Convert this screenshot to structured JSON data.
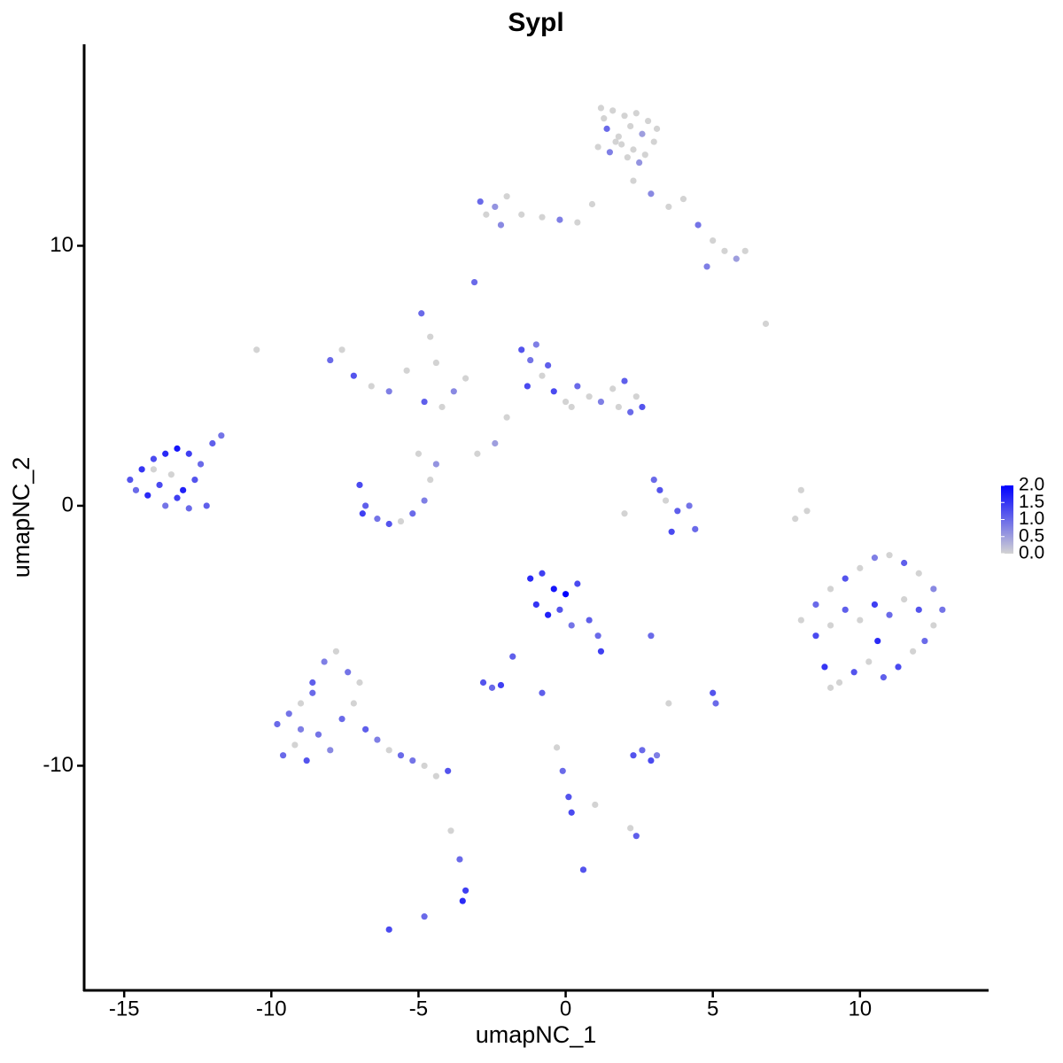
{
  "chart_data": {
    "type": "scatter",
    "title": "Sypl",
    "x_label": "umapNC_1",
    "y_label": "umapNC_2",
    "xlim": [
      -16.36,
      14.37
    ],
    "ylim": [
      -18.64,
      17.75
    ],
    "xticks": [
      -15,
      -10,
      -5,
      0,
      5,
      10
    ],
    "yticks": [
      -10,
      0,
      10
    ],
    "color_low": "#d3d3d3",
    "color_high": "#0000ff",
    "clim": [
      0,
      2
    ],
    "cticks": [
      {
        "value": 0,
        "label": "0.0"
      },
      0.5,
      {
        "value": 1,
        "label": "1.0"
      },
      1.5,
      {
        "value": 2,
        "label": "2.0"
      }
    ],
    "x": [
      1.2,
      1.6,
      2.0,
      2.4,
      2.8,
      1.4,
      1.8,
      2.2,
      2.6,
      3.0,
      1.1,
      1.5,
      1.9,
      2.3,
      2.7,
      1.3,
      1.7,
      2.1,
      2.5,
      3.1,
      2.3,
      2.9,
      3.5,
      4.0,
      4.5,
      5.0,
      5.4,
      5.8,
      6.1,
      4.8,
      -2.9,
      -2.4,
      -2.0,
      -1.5,
      -0.8,
      -0.2,
      0.4,
      -2.7,
      -2.2,
      0.9,
      -14.8,
      -14.4,
      -14.0,
      -13.6,
      -13.2,
      -12.8,
      -12.4,
      -12.0,
      -11.7,
      -14.6,
      -14.2,
      -13.8,
      -13.4,
      -13.0,
      -12.6,
      -12.2,
      -13.6,
      -13.2,
      -12.8,
      -14.0,
      -8.0,
      -7.6,
      -7.2,
      -6.6,
      -6.0,
      -5.4,
      -4.8,
      -4.2,
      -3.8,
      -3.4,
      -7.0,
      -6.8,
      -6.4,
      -6.0,
      -5.6,
      -5.2,
      -4.8,
      -4.6,
      -4.4,
      -6.9,
      -4.9,
      -4.6,
      -4.4,
      -5.0,
      -3.0,
      -1.5,
      -1.2,
      -0.8,
      -0.4,
      0.0,
      0.4,
      0.8,
      1.2,
      1.6,
      2.0,
      2.4,
      2.6,
      -1.0,
      -0.6,
      -2.0,
      -2.4,
      1.8,
      2.2,
      -1.3,
      0.2,
      3.0,
      3.2,
      3.4,
      3.8,
      4.2,
      4.4,
      2.0,
      3.6,
      8.0,
      8.2,
      7.8,
      8.0,
      8.5,
      9.0,
      9.5,
      10.0,
      10.5,
      11.0,
      11.5,
      12.0,
      12.5,
      8.5,
      9.0,
      9.5,
      10.0,
      10.5,
      11.0,
      11.5,
      12.0,
      12.5,
      12.8,
      8.8,
      9.3,
      9.8,
      10.3,
      10.8,
      11.3,
      11.8,
      12.2,
      9.0,
      10.6,
      -1.2,
      -0.8,
      -0.4,
      0.0,
      0.4,
      -1.0,
      -0.6,
      -0.2,
      0.2,
      0.8,
      1.1,
      1.2,
      -9.8,
      -9.4,
      -9.0,
      -8.6,
      -8.2,
      -7.8,
      -7.4,
      -9.6,
      -9.2,
      -8.8,
      -8.4,
      -8.0,
      -7.6,
      -7.2,
      -6.8,
      -6.4,
      -6.0,
      -5.6,
      -5.2,
      -4.8,
      -4.4,
      -4.0,
      -7.0,
      -8.6,
      -9.0,
      -2.8,
      -2.5,
      -2.2,
      -1.8,
      2.3,
      2.6,
      2.9,
      3.1,
      5.0,
      5.1,
      -0.3,
      -0.1,
      0.1,
      0.2,
      1.0,
      2.2,
      2.4,
      -3.4,
      -3.5,
      -3.6,
      -6.0,
      -4.8,
      -3.9,
      0.6,
      2.9,
      3.5,
      -0.8,
      -10.5,
      -3.1,
      6.8
    ],
    "y": [
      15.3,
      15.2,
      15.0,
      15.1,
      14.8,
      14.5,
      14.2,
      14.6,
      14.3,
      14.0,
      13.8,
      13.6,
      13.9,
      13.7,
      13.5,
      14.9,
      14.0,
      13.4,
      13.2,
      14.5,
      12.5,
      12.0,
      11.5,
      11.8,
      10.8,
      10.2,
      9.8,
      9.5,
      9.8,
      9.2,
      11.7,
      11.5,
      11.9,
      11.2,
      11.1,
      11.0,
      10.9,
      11.2,
      10.8,
      11.6,
      1.0,
      1.4,
      1.8,
      2.0,
      2.2,
      2.0,
      1.6,
      2.4,
      2.7,
      0.6,
      0.4,
      0.8,
      1.2,
      0.6,
      1.0,
      0.0,
      0.0,
      0.3,
      -0.1,
      1.4,
      5.6,
      6.0,
      5.0,
      4.6,
      4.4,
      5.2,
      4.0,
      3.8,
      4.4,
      4.9,
      0.8,
      0.0,
      -0.5,
      -0.7,
      -0.6,
      -0.3,
      0.2,
      1.0,
      1.6,
      -0.3,
      7.4,
      6.5,
      5.5,
      2.0,
      2.0,
      6.0,
      5.6,
      5.0,
      4.4,
      4.0,
      4.6,
      4.2,
      4.0,
      4.5,
      4.8,
      4.2,
      3.8,
      6.2,
      5.4,
      3.4,
      2.4,
      3.8,
      3.6,
      4.6,
      3.8,
      1.0,
      0.6,
      0.2,
      -0.2,
      0,
      -0.9,
      -0.3,
      -1.0,
      0.6,
      -0.2,
      -0.5,
      -4.4,
      -3.8,
      -3.2,
      -2.8,
      -2.4,
      -2.0,
      -1.9,
      -2.2,
      -2.6,
      -3.2,
      -5.0,
      -4.6,
      -4.0,
      -4.4,
      -3.8,
      -4.2,
      -3.6,
      -4.0,
      -4.6,
      -4.0,
      -6.2,
      -6.8,
      -6.4,
      -6.0,
      -6.6,
      -6.2,
      -5.6,
      -5.2,
      -7.0,
      -5.2,
      -2.8,
      -2.6,
      -3.2,
      -3.4,
      -3.0,
      -3.8,
      -4.2,
      -4.0,
      -4.6,
      -4.4,
      -5.0,
      -5.6,
      -8.4,
      -8.0,
      -7.6,
      -6.8,
      -6.0,
      -5.6,
      -6.4,
      -9.6,
      -9.2,
      -9.8,
      -8.8,
      -9.4,
      -8.2,
      -7.6,
      -8.6,
      -9.0,
      -9.4,
      -9.6,
      -9.8,
      -10.0,
      -10.4,
      -10.2,
      -6.8,
      -7.2,
      -8.6,
      -6.8,
      -7.0,
      -6.9,
      -5.8,
      -9.6,
      -9.4,
      -9.8,
      -9.6,
      -7.2,
      -7.6,
      -9.3,
      -10.2,
      -11.2,
      -11.8,
      -11.5,
      -12.4,
      -12.7,
      -14.8,
      -15.2,
      -13.6,
      -16.3,
      -15.8,
      -12.5,
      -14.0,
      -5.0,
      -7.6,
      -7.2,
      6.0,
      8.6,
      7.0
    ],
    "values": [
      0,
      0,
      0,
      0,
      0,
      1.0,
      0,
      0,
      0.5,
      0,
      0,
      0.8,
      0,
      0,
      0,
      0,
      0,
      0,
      0.6,
      0,
      0,
      0.7,
      0,
      0,
      0.9,
      0,
      0,
      0.5,
      0,
      0.8,
      1.0,
      0.6,
      0,
      0,
      0,
      0.8,
      0,
      0,
      0.7,
      0,
      1.2,
      1.5,
      1.3,
      1.6,
      1.8,
      1.4,
      1.0,
      1.1,
      0.9,
      1.0,
      1.6,
      1.3,
      0,
      1.7,
      1.2,
      1.1,
      0.9,
      1.4,
      1.0,
      0,
      1.0,
      0,
      1.2,
      0,
      0.8,
      0,
      1.1,
      0,
      0.7,
      0,
      1.3,
      1.1,
      0.9,
      1.2,
      0,
      1.0,
      0.8,
      0,
      0.6,
      1.4,
      1.0,
      0,
      0,
      0,
      0,
      1.2,
      0.9,
      0,
      1.3,
      0,
      1.0,
      0,
      0.8,
      0,
      1.1,
      0,
      1.2,
      0.8,
      1.1,
      0,
      0.5,
      0,
      1.0,
      1.3,
      0,
      1.0,
      1.2,
      0,
      1.1,
      0.9,
      1.0,
      0,
      1.3,
      0,
      0,
      0,
      0,
      1.0,
      0,
      1.2,
      0,
      0.8,
      0,
      1.1,
      0,
      0.7,
      1.3,
      0,
      1.1,
      0,
      1.4,
      1.0,
      0,
      1.2,
      0,
      0.9,
      1.5,
      0,
      1.2,
      0,
      1.1,
      1.3,
      0,
      1.0,
      0,
      1.6,
      1.6,
      1.4,
      1.8,
      2.0,
      1.3,
      1.5,
      1.7,
      1.2,
      0.9,
      1.1,
      1.0,
      1.4,
      1.0,
      0.9,
      0,
      1.1,
      0.8,
      0,
      0.9,
      1.0,
      0,
      1.2,
      0.9,
      0.7,
      1.0,
      0,
      1.1,
      0.8,
      0,
      1.0,
      0.9,
      0,
      0,
      1.2,
      0,
      1.0,
      0.8,
      1.2,
      1.0,
      1.4,
      1.1,
      1.2,
      1.0,
      1.3,
      0.8,
      1.2,
      1.0,
      0,
      1.0,
      1.2,
      1.3,
      0,
      0,
      1.1,
      1.4,
      1.6,
      1.0,
      1.3,
      1.0,
      0,
      1.2,
      1.0,
      0,
      1.1,
      0,
      1.0,
      0
    ]
  }
}
